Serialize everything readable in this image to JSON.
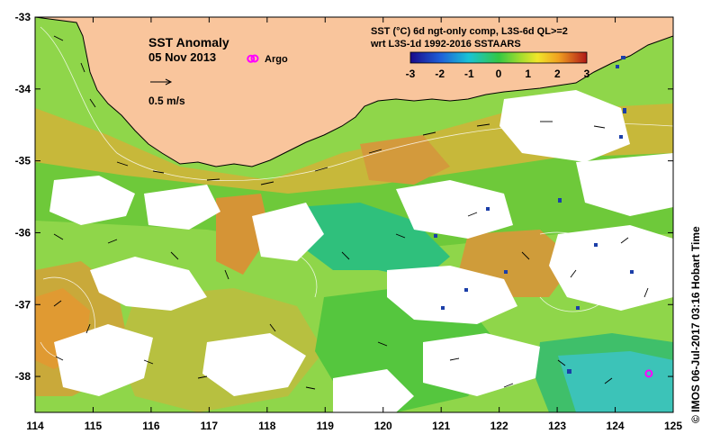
{
  "map": {
    "title": "SST Anomaly",
    "date": "05 Nov 2013",
    "argo_label": "Argo",
    "velocity_label": "0.5 m/s",
    "product_line1": "SST (°C) 6d ngt-only comp, L3S-6d QL>=2",
    "product_line2": "wrt L3S-1d 1992-2016 SSTAARS",
    "credit": "©  IMOS 06-Jul-2017 03:16 Hobart Time",
    "lon_ticks": [
      "114",
      "115",
      "116",
      "117",
      "118",
      "119",
      "120",
      "121",
      "122",
      "123",
      "124",
      "125"
    ],
    "lat_ticks": [
      "-33",
      "-34",
      "-35",
      "-36",
      "-37",
      "-38"
    ],
    "lon_range": [
      114,
      125
    ],
    "lat_range": [
      -38.5,
      -33
    ],
    "colorbar": {
      "ticks": [
        "-3",
        "-2",
        "-1",
        "0",
        "1",
        "2",
        "3"
      ],
      "range": [
        -3,
        3
      ]
    },
    "argo_floats": [
      {
        "lon": 117.72,
        "lat": -33.58
      },
      {
        "lon": 124.58,
        "lat": -37.96
      }
    ],
    "colors": {
      "land": "#f9c59c",
      "missing": "#ffffff",
      "argo": "#ff00ff"
    }
  }
}
